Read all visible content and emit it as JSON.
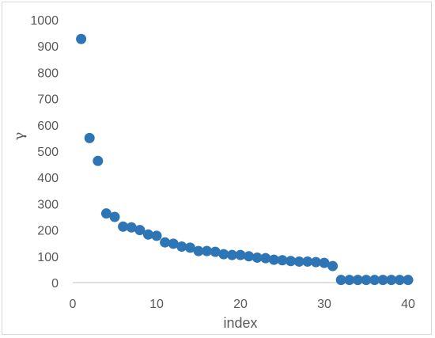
{
  "chart_data": {
    "type": "scatter",
    "xlabel": "index",
    "ylabel": "γ",
    "xlim": [
      0,
      40
    ],
    "ylim": [
      0,
      1000
    ],
    "x_ticks": [
      0,
      10,
      20,
      30,
      40
    ],
    "y_ticks": [
      0,
      100,
      200,
      300,
      400,
      500,
      600,
      700,
      800,
      900,
      1000
    ],
    "grid": false,
    "marker_color": "#2E75B6",
    "points": [
      {
        "x": 1,
        "y": 927
      },
      {
        "x": 2,
        "y": 550
      },
      {
        "x": 3,
        "y": 463
      },
      {
        "x": 4,
        "y": 263
      },
      {
        "x": 5,
        "y": 250
      },
      {
        "x": 6,
        "y": 213
      },
      {
        "x": 7,
        "y": 210
      },
      {
        "x": 8,
        "y": 200
      },
      {
        "x": 9,
        "y": 183
      },
      {
        "x": 10,
        "y": 178
      },
      {
        "x": 11,
        "y": 153
      },
      {
        "x": 12,
        "y": 148
      },
      {
        "x": 13,
        "y": 137
      },
      {
        "x": 14,
        "y": 133
      },
      {
        "x": 15,
        "y": 120
      },
      {
        "x": 16,
        "y": 120
      },
      {
        "x": 17,
        "y": 117
      },
      {
        "x": 18,
        "y": 108
      },
      {
        "x": 19,
        "y": 105
      },
      {
        "x": 20,
        "y": 105
      },
      {
        "x": 21,
        "y": 100
      },
      {
        "x": 22,
        "y": 95
      },
      {
        "x": 23,
        "y": 93
      },
      {
        "x": 24,
        "y": 87
      },
      {
        "x": 25,
        "y": 85
      },
      {
        "x": 26,
        "y": 82
      },
      {
        "x": 27,
        "y": 80
      },
      {
        "x": 28,
        "y": 80
      },
      {
        "x": 29,
        "y": 78
      },
      {
        "x": 30,
        "y": 75
      },
      {
        "x": 31,
        "y": 63
      },
      {
        "x": 32,
        "y": 10
      },
      {
        "x": 33,
        "y": 10
      },
      {
        "x": 34,
        "y": 10
      },
      {
        "x": 35,
        "y": 10
      },
      {
        "x": 36,
        "y": 10
      },
      {
        "x": 37,
        "y": 10
      },
      {
        "x": 38,
        "y": 10
      },
      {
        "x": 39,
        "y": 10
      },
      {
        "x": 40,
        "y": 10
      }
    ]
  }
}
